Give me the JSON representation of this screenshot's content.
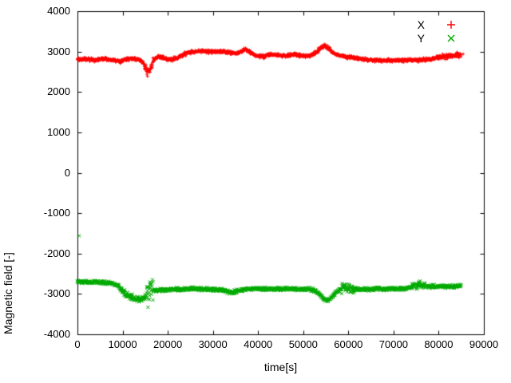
{
  "chart_data": {
    "type": "scatter",
    "title": "",
    "xlabel": "time[s]",
    "ylabel": "Magnetic field [-]",
    "xlim": [
      0,
      90000
    ],
    "ylim": [
      -4000,
      4000
    ],
    "xticks": [
      0,
      10000,
      20000,
      30000,
      40000,
      50000,
      60000,
      70000,
      80000,
      90000
    ],
    "yticks": [
      -4000,
      -3000,
      -2000,
      -1000,
      0,
      1000,
      2000,
      3000,
      4000
    ],
    "grid": false,
    "legend_position": "top-right-inside",
    "frame_color": "#000000",
    "series": [
      {
        "name": "X",
        "color": "#ff0000",
        "marker": "plus",
        "noise": 60,
        "keypoints": [
          [
            0,
            2800
          ],
          [
            2000,
            2810
          ],
          [
            4000,
            2790
          ],
          [
            6000,
            2820
          ],
          [
            8000,
            2780
          ],
          [
            9500,
            2750
          ],
          [
            10500,
            2800
          ],
          [
            12000,
            2830
          ],
          [
            13500,
            2800
          ],
          [
            14500,
            2740
          ],
          [
            15200,
            2560
          ],
          [
            15600,
            2470
          ],
          [
            16000,
            2540
          ],
          [
            16600,
            2700
          ],
          [
            17200,
            2830
          ],
          [
            18000,
            2890
          ],
          [
            19000,
            2840
          ],
          [
            20000,
            2800
          ],
          [
            21500,
            2820
          ],
          [
            23000,
            2900
          ],
          [
            24500,
            2980
          ],
          [
            25500,
            3000
          ],
          [
            28000,
            3005
          ],
          [
            31000,
            3000
          ],
          [
            33000,
            2990
          ],
          [
            34500,
            2955
          ],
          [
            35500,
            2960
          ],
          [
            36500,
            3020
          ],
          [
            37200,
            3050
          ],
          [
            38000,
            3000
          ],
          [
            39000,
            2940
          ],
          [
            40000,
            2890
          ],
          [
            41000,
            2870
          ],
          [
            42000,
            2910
          ],
          [
            43500,
            2930
          ],
          [
            45000,
            2890
          ],
          [
            46500,
            2900
          ],
          [
            48000,
            2930
          ],
          [
            49500,
            2900
          ],
          [
            51000,
            2890
          ],
          [
            52500,
            2940
          ],
          [
            53500,
            3040
          ],
          [
            54300,
            3120
          ],
          [
            55000,
            3140
          ],
          [
            55800,
            3060
          ],
          [
            56500,
            2980
          ],
          [
            57500,
            2920
          ],
          [
            58500,
            2890
          ],
          [
            60000,
            2860
          ],
          [
            62000,
            2830
          ],
          [
            64000,
            2800
          ],
          [
            66000,
            2785
          ],
          [
            68000,
            2780
          ],
          [
            70000,
            2780
          ],
          [
            72000,
            2780
          ],
          [
            74000,
            2785
          ],
          [
            76000,
            2790
          ],
          [
            78000,
            2810
          ],
          [
            79500,
            2840
          ],
          [
            80500,
            2890
          ],
          [
            81500,
            2870
          ],
          [
            82500,
            2890
          ],
          [
            83500,
            2900
          ],
          [
            85000,
            2920
          ]
        ],
        "noise_regions": [
          [
            14800,
            17000,
            150
          ],
          [
            23000,
            24500,
            70
          ],
          [
            36000,
            38500,
            80
          ],
          [
            40000,
            42000,
            70
          ],
          [
            52500,
            56500,
            90
          ],
          [
            79500,
            85000,
            85
          ]
        ],
        "outliers": [
          [
            85400,
            2940
          ]
        ]
      },
      {
        "name": "Y",
        "color": "#00aa00",
        "marker": "cross",
        "noise": 60,
        "keypoints": [
          [
            0,
            -2700
          ],
          [
            2000,
            -2710
          ],
          [
            4000,
            -2700
          ],
          [
            6000,
            -2720
          ],
          [
            8000,
            -2740
          ],
          [
            9000,
            -2800
          ],
          [
            9800,
            -2900
          ],
          [
            10500,
            -3000
          ],
          [
            11500,
            -3060
          ],
          [
            12500,
            -3100
          ],
          [
            13500,
            -3130
          ],
          [
            14300,
            -3140
          ],
          [
            15000,
            -3080
          ],
          [
            15600,
            -2950
          ],
          [
            16100,
            -2880
          ],
          [
            16700,
            -2900
          ],
          [
            17500,
            -2920
          ],
          [
            18500,
            -2900
          ],
          [
            20000,
            -2890
          ],
          [
            22000,
            -2880
          ],
          [
            24000,
            -2880
          ],
          [
            26000,
            -2870
          ],
          [
            28000,
            -2880
          ],
          [
            30000,
            -2890
          ],
          [
            32000,
            -2900
          ],
          [
            33500,
            -2940
          ],
          [
            34500,
            -2960
          ],
          [
            35500,
            -2920
          ],
          [
            36500,
            -2890
          ],
          [
            38000,
            -2880
          ],
          [
            40000,
            -2870
          ],
          [
            42000,
            -2880
          ],
          [
            44000,
            -2880
          ],
          [
            46000,
            -2870
          ],
          [
            48000,
            -2880
          ],
          [
            50000,
            -2880
          ],
          [
            52000,
            -2900
          ],
          [
            53000,
            -2950
          ],
          [
            54000,
            -3060
          ],
          [
            54800,
            -3140
          ],
          [
            55500,
            -3160
          ],
          [
            56300,
            -3080
          ],
          [
            57000,
            -2990
          ],
          [
            58000,
            -2900
          ],
          [
            59000,
            -2840
          ],
          [
            60000,
            -2860
          ],
          [
            61000,
            -2880
          ],
          [
            62500,
            -2890
          ],
          [
            64000,
            -2890
          ],
          [
            66000,
            -2880
          ],
          [
            68000,
            -2880
          ],
          [
            70000,
            -2880
          ],
          [
            72000,
            -2870
          ],
          [
            73500,
            -2850
          ],
          [
            75000,
            -2790
          ],
          [
            76000,
            -2760
          ],
          [
            77000,
            -2800
          ],
          [
            78000,
            -2820
          ],
          [
            80000,
            -2810
          ],
          [
            82000,
            -2820
          ],
          [
            83500,
            -2810
          ],
          [
            85000,
            -2800
          ]
        ],
        "noise_regions": [
          [
            9500,
            15200,
            110
          ],
          [
            15300,
            16900,
            420
          ],
          [
            33000,
            35500,
            100
          ],
          [
            58500,
            61500,
            150
          ],
          [
            74000,
            77000,
            120
          ]
        ],
        "outliers": [
          [
            400,
            -1560
          ]
        ]
      }
    ]
  }
}
